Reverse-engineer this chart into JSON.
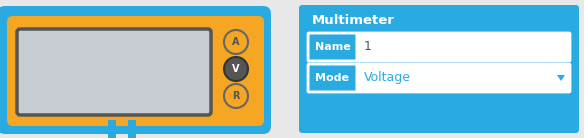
{
  "bg_color": "#e8e8e8",
  "meter_bg": "#29abe2",
  "meter_body_fill": "#f5a623",
  "meter_screen_fill": "#c8cdd4",
  "meter_screen_border": "#555555",
  "button_a_fill": "#f5a623",
  "button_a_border": "#666666",
  "button_v_fill": "#555555",
  "button_v_border": "#333333",
  "button_r_fill": "#f5a623",
  "button_r_border": "#666666",
  "button_text_dark": "#555555",
  "button_text_light": "#ffffff",
  "probe_color": "#29abe2",
  "panel_bg": "#29abe2",
  "panel_title": "Multimeter",
  "panel_title_color": "#ffffff",
  "panel_title_fontsize": 9.5,
  "row_label_bg": "#29abe2",
  "row_label_color": "#ffffff",
  "row_value_bg": "#ffffff",
  "row_value_color": "#29abe2",
  "name_label": "Name",
  "name_value": "1",
  "mode_label": "Mode",
  "mode_value": "Voltage",
  "dropdown_arrow_color": "#29abe2"
}
